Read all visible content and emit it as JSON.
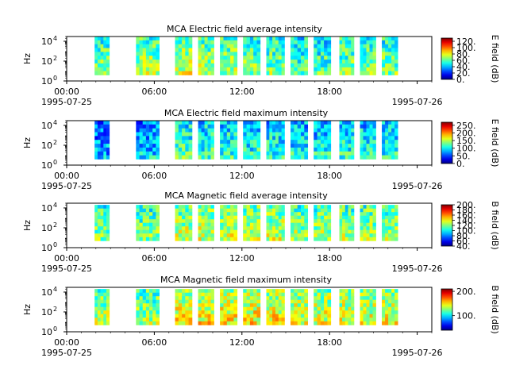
{
  "chart_data": [
    {
      "type": "heatmap",
      "title": "MCA  Electric field average intensity",
      "ylabel": "Hz",
      "yscale": "log",
      "ylim": [
        1,
        30000
      ],
      "yticks": [
        {
          "label": "10",
          "exp": "0",
          "v": 1
        },
        {
          "label": "10",
          "exp": "2",
          "v": 100
        },
        {
          "label": "10",
          "exp": "4",
          "v": 10000
        }
      ],
      "xlim": [
        "1995-07-25T00:00",
        "1995-07-26T01:00"
      ],
      "xticks": [
        {
          "t": "1995-07-25T00:00",
          "label": "00:00",
          "sub": "1995-07-25"
        },
        {
          "t": "1995-07-25T06:00",
          "label": "06:00",
          "sub": ""
        },
        {
          "t": "1995-07-25T12:00",
          "label": "12:00",
          "sub": ""
        },
        {
          "t": "1995-07-25T18:00",
          "label": "18:00",
          "sub": ""
        },
        {
          "t": "1995-07-26T00:00",
          "label": "",
          "sub": "1995-07-26"
        }
      ],
      "colorbar": {
        "label": "E field (dB)",
        "min": 0,
        "max": 130,
        "ticks": [
          "0.",
          "20.",
          "40.",
          "60.",
          "80.",
          "100.",
          "120."
        ],
        "tickvals": [
          0,
          20,
          40,
          60,
          80,
          100,
          120
        ]
      },
      "segments": [
        {
          "start": "1995-07-25T01:55",
          "end": "1995-07-25T02:55",
          "ymin": 4,
          "ymax": 30000,
          "level": 60
        },
        {
          "start": "1995-07-25T04:45",
          "end": "1995-07-25T06:20",
          "ymin": 4,
          "ymax": 30000,
          "level": 65
        },
        {
          "start": "1995-07-25T07:25",
          "end": "1995-07-25T08:35",
          "ymin": 4,
          "ymax": 30000,
          "level": 70
        },
        {
          "start": "1995-07-25T09:00",
          "end": "1995-07-25T10:05",
          "ymin": 4,
          "ymax": 30000,
          "level": 65
        },
        {
          "start": "1995-07-25T10:30",
          "end": "1995-07-25T11:40",
          "ymin": 4,
          "ymax": 30000,
          "level": 65
        },
        {
          "start": "1995-07-25T12:05",
          "end": "1995-07-25T13:15",
          "ymin": 4,
          "ymax": 30000,
          "level": 60
        },
        {
          "start": "1995-07-25T13:40",
          "end": "1995-07-25T14:55",
          "ymin": 4,
          "ymax": 30000,
          "level": 60
        },
        {
          "start": "1995-07-25T15:20",
          "end": "1995-07-25T16:30",
          "ymin": 4,
          "ymax": 30000,
          "level": 55
        },
        {
          "start": "1995-07-25T16:55",
          "end": "1995-07-25T18:05",
          "ymin": 4,
          "ymax": 30000,
          "level": 55
        },
        {
          "start": "1995-07-25T18:40",
          "end": "1995-07-25T19:40",
          "ymin": 4,
          "ymax": 30000,
          "level": 60
        },
        {
          "start": "1995-07-25T20:05",
          "end": "1995-07-25T21:10",
          "ymin": 4,
          "ymax": 30000,
          "level": 60
        },
        {
          "start": "1995-07-25T21:35",
          "end": "1995-07-25T22:40",
          "ymin": 4,
          "ymax": 30000,
          "level": 60
        }
      ]
    },
    {
      "type": "heatmap",
      "title": "MCA  Electric field maximum intensity",
      "ylabel": "Hz",
      "yscale": "log",
      "ylim": [
        1,
        30000
      ],
      "yticks": [
        {
          "label": "10",
          "exp": "0",
          "v": 1
        },
        {
          "label": "10",
          "exp": "2",
          "v": 100
        },
        {
          "label": "10",
          "exp": "4",
          "v": 10000
        }
      ],
      "xlim": [
        "1995-07-25T00:00",
        "1995-07-26T01:00"
      ],
      "xticks": [
        {
          "t": "1995-07-25T00:00",
          "label": "00:00",
          "sub": "1995-07-25"
        },
        {
          "t": "1995-07-25T06:00",
          "label": "06:00",
          "sub": ""
        },
        {
          "t": "1995-07-25T12:00",
          "label": "12:00",
          "sub": ""
        },
        {
          "t": "1995-07-25T18:00",
          "label": "18:00",
          "sub": ""
        },
        {
          "t": "1995-07-26T00:00",
          "label": "",
          "sub": "1995-07-26"
        }
      ],
      "colorbar": {
        "label": "E field (dB)",
        "min": 0,
        "max": 270,
        "ticks": [
          "0.",
          "50.",
          "100.",
          "150.",
          "200.",
          "250."
        ],
        "tickvals": [
          0,
          50,
          100,
          150,
          200,
          250
        ]
      },
      "segments": [
        {
          "start": "1995-07-25T01:55",
          "end": "1995-07-25T02:55",
          "ymin": 4,
          "ymax": 30000,
          "level": 70
        },
        {
          "start": "1995-07-25T04:45",
          "end": "1995-07-25T06:20",
          "ymin": 4,
          "ymax": 30000,
          "level": 80
        },
        {
          "start": "1995-07-25T07:25",
          "end": "1995-07-25T08:35",
          "ymin": 4,
          "ymax": 30000,
          "level": 110
        },
        {
          "start": "1995-07-25T09:00",
          "end": "1995-07-25T10:05",
          "ymin": 4,
          "ymax": 30000,
          "level": 105
        },
        {
          "start": "1995-07-25T10:30",
          "end": "1995-07-25T11:40",
          "ymin": 4,
          "ymax": 30000,
          "level": 105
        },
        {
          "start": "1995-07-25T12:05",
          "end": "1995-07-25T13:15",
          "ymin": 4,
          "ymax": 30000,
          "level": 100
        },
        {
          "start": "1995-07-25T13:40",
          "end": "1995-07-25T14:55",
          "ymin": 4,
          "ymax": 30000,
          "level": 100
        },
        {
          "start": "1995-07-25T15:20",
          "end": "1995-07-25T16:30",
          "ymin": 4,
          "ymax": 30000,
          "level": 95
        },
        {
          "start": "1995-07-25T16:55",
          "end": "1995-07-25T18:05",
          "ymin": 4,
          "ymax": 30000,
          "level": 95
        },
        {
          "start": "1995-07-25T18:40",
          "end": "1995-07-25T19:40",
          "ymin": 4,
          "ymax": 30000,
          "level": 100
        },
        {
          "start": "1995-07-25T20:05",
          "end": "1995-07-25T21:10",
          "ymin": 4,
          "ymax": 30000,
          "level": 100
        },
        {
          "start": "1995-07-25T21:35",
          "end": "1995-07-25T22:40",
          "ymin": 4,
          "ymax": 30000,
          "level": 100
        }
      ]
    },
    {
      "type": "heatmap",
      "title": "MCA  Magnetic field average intensity",
      "ylabel": "Hz",
      "yscale": "log",
      "ylim": [
        1,
        30000
      ],
      "yticks": [
        {
          "label": "10",
          "exp": "0",
          "v": 1
        },
        {
          "label": "10",
          "exp": "2",
          "v": 100
        },
        {
          "label": "10",
          "exp": "4",
          "v": 10000
        }
      ],
      "xlim": [
        "1995-07-25T00:00",
        "1995-07-26T01:00"
      ],
      "xticks": [
        {
          "t": "1995-07-25T00:00",
          "label": "00:00",
          "sub": "1995-07-25"
        },
        {
          "t": "1995-07-25T06:00",
          "label": "06:00",
          "sub": ""
        },
        {
          "t": "1995-07-25T12:00",
          "label": "12:00",
          "sub": ""
        },
        {
          "t": "1995-07-25T18:00",
          "label": "18:00",
          "sub": ""
        },
        {
          "t": "1995-07-26T00:00",
          "label": "",
          "sub": "1995-07-26"
        }
      ],
      "colorbar": {
        "label": "B field (dB)",
        "min": 40,
        "max": 200,
        "ticks": [
          "40.",
          "60.",
          "80.",
          "100.",
          "120.",
          "140.",
          "160.",
          "180.",
          "200."
        ],
        "tickvals": [
          40,
          60,
          80,
          100,
          120,
          140,
          160,
          180,
          200
        ]
      },
      "segments": [
        {
          "start": "1995-07-25T01:55",
          "end": "1995-07-25T02:55",
          "ymin": 5,
          "ymax": 20000,
          "level": 115
        },
        {
          "start": "1995-07-25T04:45",
          "end": "1995-07-25T06:20",
          "ymin": 5,
          "ymax": 20000,
          "level": 115
        },
        {
          "start": "1995-07-25T07:25",
          "end": "1995-07-25T08:35",
          "ymin": 5,
          "ymax": 20000,
          "level": 125
        },
        {
          "start": "1995-07-25T09:00",
          "end": "1995-07-25T10:05",
          "ymin": 5,
          "ymax": 20000,
          "level": 125
        },
        {
          "start": "1995-07-25T10:30",
          "end": "1995-07-25T11:40",
          "ymin": 5,
          "ymax": 20000,
          "level": 125
        },
        {
          "start": "1995-07-25T12:05",
          "end": "1995-07-25T13:15",
          "ymin": 5,
          "ymax": 20000,
          "level": 125
        },
        {
          "start": "1995-07-25T13:40",
          "end": "1995-07-25T14:55",
          "ymin": 5,
          "ymax": 20000,
          "level": 125
        },
        {
          "start": "1995-07-25T15:20",
          "end": "1995-07-25T16:30",
          "ymin": 5,
          "ymax": 20000,
          "level": 120
        },
        {
          "start": "1995-07-25T16:55",
          "end": "1995-07-25T18:05",
          "ymin": 5,
          "ymax": 20000,
          "level": 120
        },
        {
          "start": "1995-07-25T18:40",
          "end": "1995-07-25T19:40",
          "ymin": 5,
          "ymax": 20000,
          "level": 120
        },
        {
          "start": "1995-07-25T20:05",
          "end": "1995-07-25T21:10",
          "ymin": 5,
          "ymax": 20000,
          "level": 120
        },
        {
          "start": "1995-07-25T21:35",
          "end": "1995-07-25T22:40",
          "ymin": 5,
          "ymax": 20000,
          "level": 120
        }
      ]
    },
    {
      "type": "heatmap",
      "title": "MCA  Magnetic field maximum intensity",
      "ylabel": "Hz",
      "yscale": "log",
      "ylim": [
        1,
        30000
      ],
      "yticks": [
        {
          "label": "10",
          "exp": "0",
          "v": 1
        },
        {
          "label": "10",
          "exp": "2",
          "v": 100
        },
        {
          "label": "10",
          "exp": "4",
          "v": 10000
        }
      ],
      "xlim": [
        "1995-07-25T00:00",
        "1995-07-26T01:00"
      ],
      "xticks": [
        {
          "t": "1995-07-25T00:00",
          "label": "00:00",
          "sub": "1995-07-25"
        },
        {
          "t": "1995-07-25T06:00",
          "label": "06:00",
          "sub": ""
        },
        {
          "t": "1995-07-25T12:00",
          "label": "12:00",
          "sub": ""
        },
        {
          "t": "1995-07-25T18:00",
          "label": "18:00",
          "sub": ""
        },
        {
          "t": "1995-07-26T00:00",
          "label": "",
          "sub": "1995-07-26"
        }
      ],
      "colorbar": {
        "label": "B field (dB)",
        "min": 40,
        "max": 210,
        "ticks": [
          "100.",
          "200."
        ],
        "tickvals": [
          100,
          200
        ]
      },
      "segments": [
        {
          "start": "1995-07-25T01:55",
          "end": "1995-07-25T02:55",
          "ymin": 5,
          "ymax": 20000,
          "level": 125
        },
        {
          "start": "1995-07-25T04:45",
          "end": "1995-07-25T06:20",
          "ymin": 5,
          "ymax": 20000,
          "level": 125
        },
        {
          "start": "1995-07-25T07:25",
          "end": "1995-07-25T08:35",
          "ymin": 5,
          "ymax": 20000,
          "level": 140
        },
        {
          "start": "1995-07-25T09:00",
          "end": "1995-07-25T10:05",
          "ymin": 5,
          "ymax": 20000,
          "level": 140
        },
        {
          "start": "1995-07-25T10:30",
          "end": "1995-07-25T11:40",
          "ymin": 5,
          "ymax": 20000,
          "level": 140
        },
        {
          "start": "1995-07-25T12:05",
          "end": "1995-07-25T13:15",
          "ymin": 5,
          "ymax": 20000,
          "level": 140
        },
        {
          "start": "1995-07-25T13:40",
          "end": "1995-07-25T14:55",
          "ymin": 5,
          "ymax": 20000,
          "level": 140
        },
        {
          "start": "1995-07-25T15:20",
          "end": "1995-07-25T16:30",
          "ymin": 5,
          "ymax": 20000,
          "level": 135
        },
        {
          "start": "1995-07-25T16:55",
          "end": "1995-07-25T18:05",
          "ymin": 5,
          "ymax": 20000,
          "level": 135
        },
        {
          "start": "1995-07-25T18:40",
          "end": "1995-07-25T19:40",
          "ymin": 5,
          "ymax": 20000,
          "level": 135
        },
        {
          "start": "1995-07-25T20:05",
          "end": "1995-07-25T21:10",
          "ymin": 5,
          "ymax": 20000,
          "level": 135
        },
        {
          "start": "1995-07-25T21:35",
          "end": "1995-07-25T22:40",
          "ymin": 5,
          "ymax": 20000,
          "level": 135
        }
      ]
    }
  ]
}
